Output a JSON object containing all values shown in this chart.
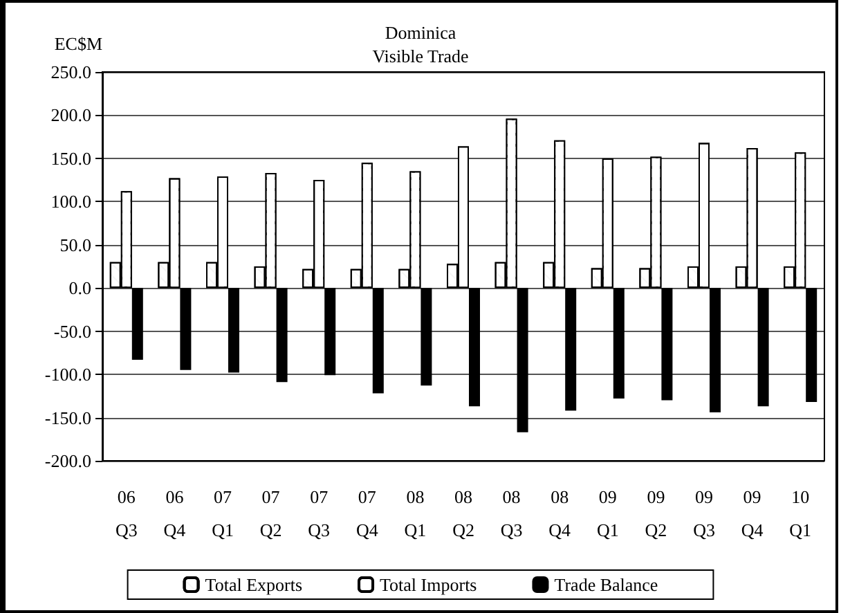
{
  "chart_data": {
    "type": "bar",
    "title": "Dominica",
    "subtitle": "Visible Trade",
    "ylabel": "EC$M",
    "categories": [
      "06\nQ3",
      "06\nQ4",
      "07\nQ1",
      "07\nQ2",
      "07\nQ3",
      "07\nQ4",
      "08\nQ1",
      "08\nQ2",
      "08\nQ3",
      "08\nQ4",
      "09\nQ1",
      "09\nQ2",
      "09\nQ3",
      "09\nQ4",
      "10\nQ1"
    ],
    "series": [
      {
        "name": "Total Exports",
        "color": "#ffffff",
        "values": [
          30,
          30,
          30,
          25,
          22,
          22,
          22,
          28,
          30,
          30,
          23,
          23,
          25,
          25,
          25
        ]
      },
      {
        "name": "Total Imports",
        "color": "#ffffff",
        "values": [
          112,
          127,
          129,
          133,
          125,
          145,
          135,
          164,
          196,
          171,
          150,
          152,
          168,
          162,
          157
        ]
      },
      {
        "name": "Trade Balance",
        "color": "#000000",
        "values": [
          -83,
          -95,
          -98,
          -109,
          -101,
          -122,
          -113,
          -137,
          -167,
          -142,
          -128,
          -130,
          -144,
          -137,
          -132
        ]
      }
    ],
    "ylim": [
      -200,
      250
    ],
    "yticks": [
      {
        "value": -200,
        "label": "-200.0"
      },
      {
        "value": -150,
        "label": "-150.0"
      },
      {
        "value": -100,
        "label": "-100.0"
      },
      {
        "value": -50,
        "label": "-50.0"
      },
      {
        "value": 0,
        "label": "0.0"
      },
      {
        "value": 50,
        "label": "50.0"
      },
      {
        "value": 100,
        "label": "100.0"
      },
      {
        "value": 150,
        "label": "150.0"
      },
      {
        "value": 200,
        "label": "200.0"
      },
      {
        "value": 250,
        "label": "250.0"
      }
    ],
    "grid": "y",
    "legend": "bottom"
  }
}
